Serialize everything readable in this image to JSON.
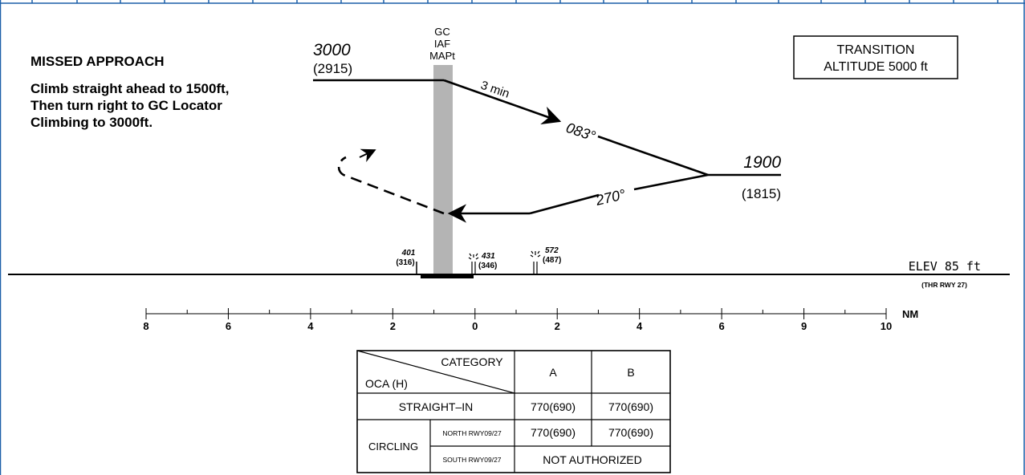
{
  "missed_approach": {
    "title": "MISSED APPROACH",
    "lines": [
      "Climb straight ahead to 1500ft,",
      "Then turn right to GC Locator",
      "Climbing to 3000ft."
    ]
  },
  "transition_altitude": {
    "line1": "TRANSITION",
    "line2": "ALTITUDE  5000  ft"
  },
  "fix": {
    "line1": "GC",
    "line2": "IAF",
    "line3": "MAPt"
  },
  "altitudes": {
    "left_alt": "3000",
    "left_alt_height": "(2915)",
    "right_alt": "1900",
    "right_alt_height": "(1815)"
  },
  "profile": {
    "outbound_time": "3 min",
    "outbound_track": "083°",
    "inbound_track": "270°"
  },
  "obstacles": [
    {
      "alt": "401",
      "height": "(316)"
    },
    {
      "alt": "431",
      "height": "(346)"
    },
    {
      "alt": "572",
      "height": "(487)"
    }
  ],
  "elevation": {
    "label": "ELEV  85  ft",
    "ref": "(THR  RWY  27)"
  },
  "distance_scale": {
    "unit": "NM",
    "labels": [
      "8",
      "6",
      "4",
      "2",
      "0",
      "2",
      "4",
      "6",
      "9",
      "10"
    ]
  },
  "oca_table": {
    "header_category": "CATEGORY",
    "header_oca": "OCA  (H)",
    "col_a": "A",
    "col_b": "B",
    "straight_in_label": "STRAIGHT–IN",
    "straight_in_a": "770(690)",
    "straight_in_b": "770(690)",
    "circling_label": "CIRCLING",
    "north_label": "NORTH  RWY09/27",
    "north_a": "770(690)",
    "north_b": "770(690)",
    "south_label": "SOUTH  RWY09/27",
    "south_value": "NOT  AUTHORIZED"
  }
}
